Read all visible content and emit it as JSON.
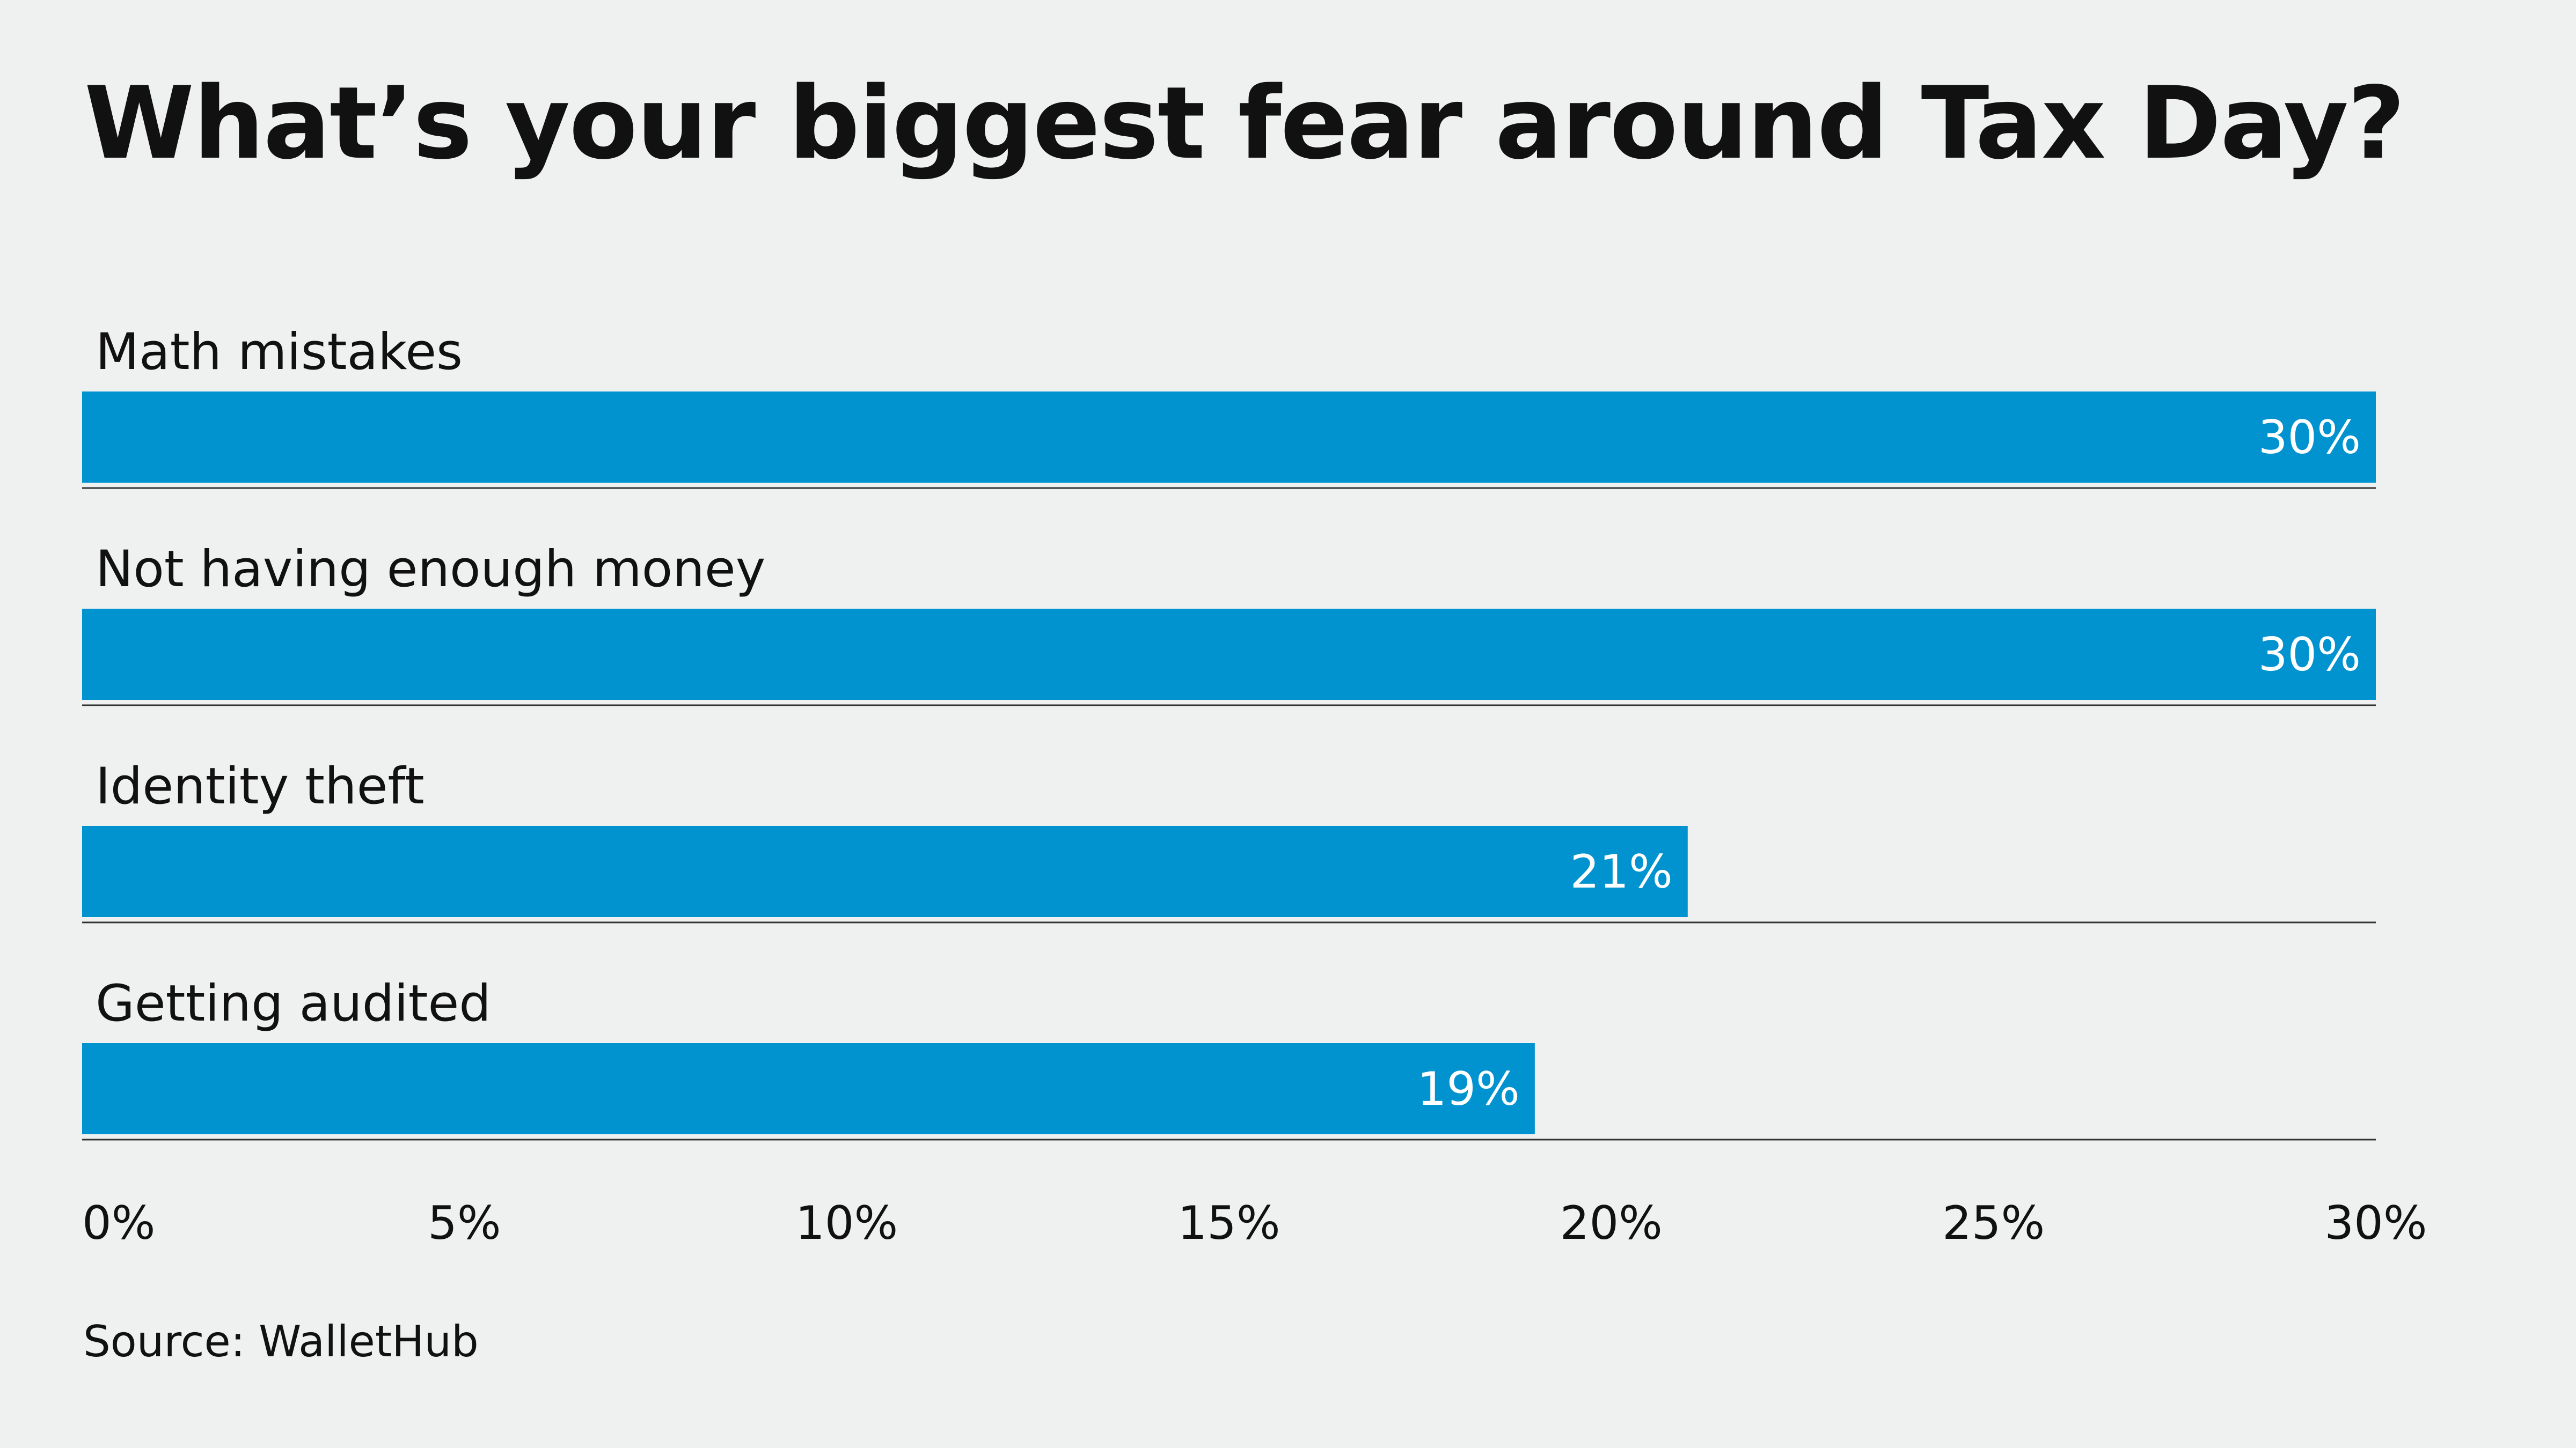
{
  "source": "Source: WalletHub",
  "colors": {
    "background": "#eff1f0",
    "bar": "#0093d0",
    "text": "#111111",
    "value_text": "#ffffff",
    "rule": "#333333"
  },
  "chart_data": {
    "type": "bar",
    "orientation": "horizontal",
    "title": "What’s your biggest fear around Tax Day?",
    "categories": [
      "Math mistakes",
      "Not having enough money",
      "Identity theft",
      "Getting audited"
    ],
    "values": [
      30,
      30,
      21,
      19
    ],
    "value_labels": [
      "30%",
      "30%",
      "21%",
      "19%"
    ],
    "xlim": [
      0,
      30
    ],
    "ticks": [
      0,
      5,
      10,
      15,
      20,
      25,
      30
    ],
    "tick_labels": [
      "0%",
      "5%",
      "10%",
      "15%",
      "20%",
      "25%",
      "30%"
    ],
    "xlabel": "",
    "ylabel": "",
    "grid": false,
    "legend": "none"
  }
}
